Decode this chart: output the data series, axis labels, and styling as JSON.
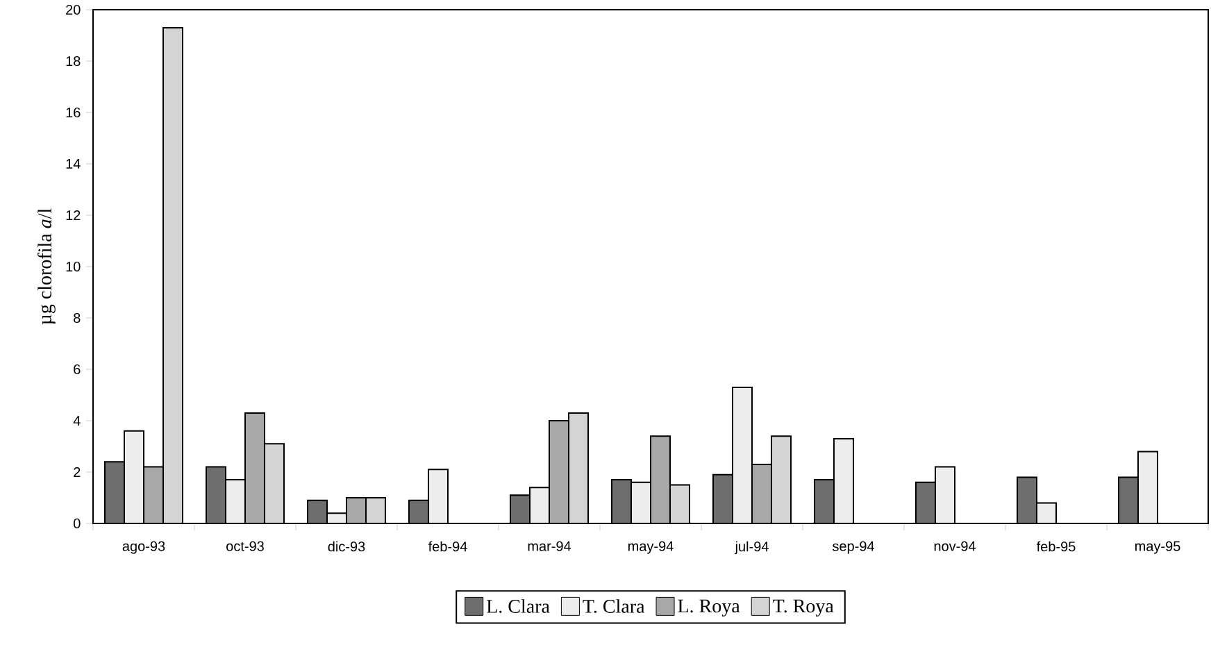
{
  "chart_data": {
    "type": "bar",
    "ylabel": "µg clorofila *a*/l",
    "categories": [
      "ago-93",
      "oct-93",
      "dic-93",
      "feb-94",
      "mar-94",
      "may-94",
      "jul-94",
      "sep-94",
      "nov-94",
      "feb-95",
      "may-95"
    ],
    "series": [
      {
        "name": "L. Clara",
        "color": "#6e6e6e",
        "values": [
          2.4,
          2.2,
          0.9,
          0.9,
          1.1,
          1.7,
          1.9,
          1.7,
          1.6,
          1.8,
          1.8
        ]
      },
      {
        "name": "T. Clara",
        "color": "#ededed",
        "values": [
          3.6,
          1.7,
          0.4,
          2.1,
          1.4,
          1.6,
          5.3,
          3.3,
          2.2,
          0.8,
          2.8
        ]
      },
      {
        "name": "L. Roya",
        "color": "#a8a8a8",
        "values": [
          2.2,
          4.3,
          1.0,
          null,
          4.0,
          3.4,
          2.3,
          null,
          null,
          null,
          null
        ]
      },
      {
        "name": "T. Roya",
        "color": "#d4d4d4",
        "values": [
          19.3,
          3.1,
          1.0,
          null,
          4.3,
          1.5,
          3.4,
          null,
          null,
          null,
          null
        ]
      }
    ],
    "ylim": [
      0,
      20
    ],
    "yticks": [
      0,
      2,
      4,
      6,
      8,
      10,
      12,
      14,
      16,
      18,
      20
    ],
    "grid": false,
    "legend": "bottom"
  }
}
